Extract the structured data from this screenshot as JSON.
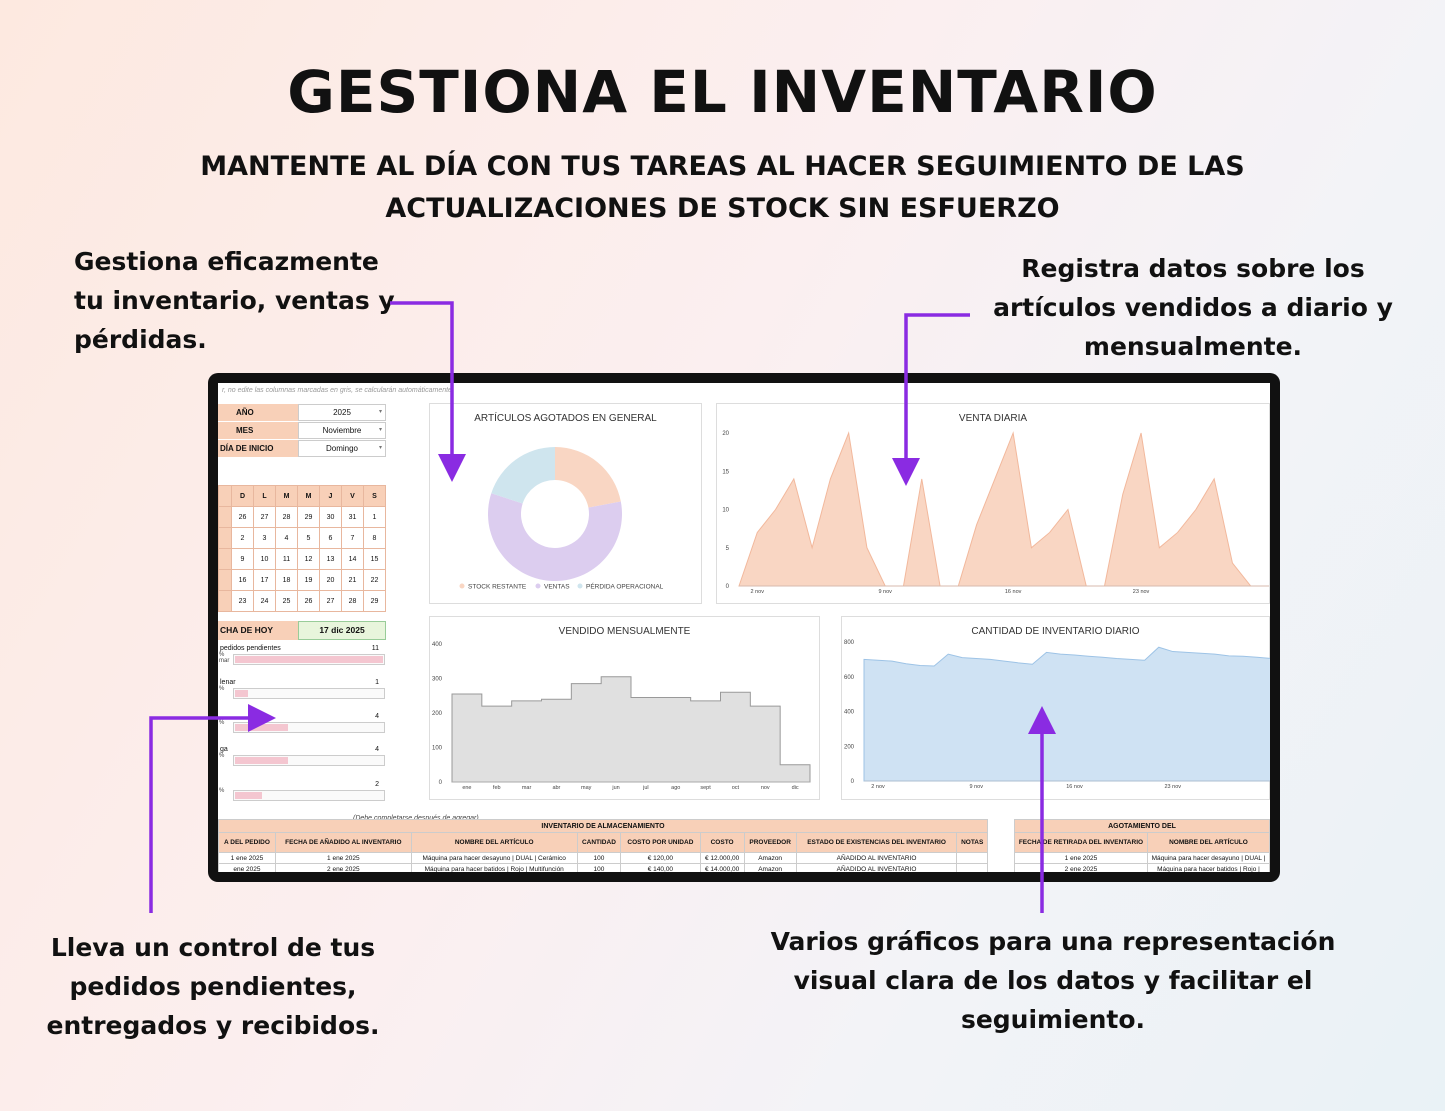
{
  "headline": "GESTIONA EL INVENTARIO",
  "subheadline": {
    "line1": "MANTENTE AL DÍA CON TUS TAREAS AL HACER SEGUIMIENTO DE LAS",
    "line2": "ACTUALIZACIONES DE STOCK SIN ESFUERZO"
  },
  "notes": {
    "top_left": [
      "Gestiona eficazmente",
      "tu inventario, ventas y",
      "pérdidas."
    ],
    "top_right": [
      "Registra datos sobre los",
      "artículos vendidos a diario y",
      "mensualmente."
    ],
    "bottom_left": [
      "Lleva un control de tus",
      "pedidos pendientes,",
      "entregados y recibidos."
    ],
    "bottom_right": [
      "Varios gráficos para una representación",
      "visual clara de los datos y facilitar el",
      "seguimiento."
    ]
  },
  "colors": {
    "arrow": "#8a2be2",
    "header_fill": "#f8d0b8",
    "peach": "#f9d6c3",
    "lavender": "#dccdef",
    "light_blue": "#cfe5ee",
    "gray_area": "#e0e0e0",
    "blue_area": "#cfe2f3",
    "blue_line": "#9dc3e6"
  },
  "sheet": {
    "hint": "r, no edite las columnas marcadas en gris, se calcularán automáticamente.",
    "year_label": "AÑO",
    "year_value": "2025",
    "month_label": "MES",
    "month_value": "Noviembre",
    "start_label": "DÍA DE INICIO",
    "start_value": "Domingo",
    "weekdays": [
      "D",
      "L",
      "M",
      "M",
      "J",
      "V",
      "S"
    ],
    "weeks": [
      [
        "26",
        "27",
        "28",
        "29",
        "30",
        "31",
        "1"
      ],
      [
        "2",
        "3",
        "4",
        "5",
        "6",
        "7",
        "8"
      ],
      [
        "9",
        "10",
        "11",
        "12",
        "13",
        "14",
        "15"
      ],
      [
        "16",
        "17",
        "18",
        "19",
        "20",
        "21",
        "22"
      ],
      [
        "23",
        "24",
        "25",
        "26",
        "27",
        "28",
        "29"
      ]
    ],
    "today_label": "CHA DE HOY",
    "today_value": "17 dic 2025",
    "orders": [
      {
        "label": "pedidos pendientes",
        "count": "11",
        "pct": "%",
        "extra": "mar",
        "fill": 1.0
      },
      {
        "label": "lenar",
        "count": "1",
        "pct": "%",
        "extra": "",
        "fill": 0.09
      },
      {
        "label": "",
        "count": "4",
        "pct": "%",
        "extra": "",
        "fill": 0.36
      },
      {
        "label": "ga",
        "count": "4",
        "pct": "%",
        "extra": "",
        "fill": 0.36
      },
      {
        "label": "",
        "count": "2",
        "pct": "%",
        "extra": "",
        "fill": 0.18
      }
    ],
    "complete_note": "(Debe completarse después de agregar)"
  },
  "chart_data": [
    {
      "type": "pie",
      "title": "ARTÍCULOS AGOTADOS EN GENERAL",
      "donut": true,
      "slices": [
        {
          "name": "STOCK RESTANTE",
          "value": 22
        },
        {
          "name": "VENTAS",
          "value": 58
        },
        {
          "name": "PÉRDIDA OPERACIONAL",
          "value": 20
        }
      ],
      "legend": "bottom"
    },
    {
      "type": "area",
      "title": "VENTA DIARIA",
      "x": [
        "1 nov",
        "2 nov",
        "3 nov",
        "4 nov",
        "5 nov",
        "6 nov",
        "7 nov",
        "8 nov",
        "9 nov",
        "10 nov",
        "11 nov",
        "12 nov",
        "13 nov",
        "14 nov",
        "15 nov",
        "16 nov",
        "17 nov",
        "18 nov",
        "19 nov",
        "20 nov",
        "21 nov",
        "22 nov",
        "23 nov",
        "24 nov",
        "25 nov",
        "26 nov",
        "27 nov",
        "28 nov",
        "29 nov",
        "30 nov"
      ],
      "values": [
        0,
        7,
        10,
        14,
        5,
        14,
        20,
        5,
        0,
        0,
        14,
        0,
        0,
        8,
        14,
        20,
        5,
        7,
        10,
        0,
        0,
        12,
        20,
        5,
        7,
        10,
        14,
        3,
        0,
        0
      ],
      "xticks": [
        "2 nov",
        "9 nov",
        "16 nov",
        "23 nov"
      ],
      "yticks": [
        0,
        5,
        10,
        15,
        20
      ],
      "ylim": [
        0,
        20
      ]
    },
    {
      "type": "area",
      "title": "VENDIDO MENSUALMENTE",
      "step": true,
      "categories": [
        "ene",
        "feb",
        "mar",
        "abr",
        "may",
        "jun",
        "jul",
        "ago",
        "sept",
        "oct",
        "nov",
        "dic"
      ],
      "values": [
        255,
        220,
        235,
        240,
        285,
        305,
        245,
        245,
        235,
        260,
        220,
        50
      ],
      "yticks": [
        0,
        100,
        200,
        300,
        400
      ],
      "ylim": [
        0,
        400
      ]
    },
    {
      "type": "area",
      "title": "CANTIDAD DE INVENTARIO DIARIO",
      "x": [
        "1 nov",
        "2 nov",
        "3 nov",
        "4 nov",
        "5 nov",
        "6 nov",
        "7 nov",
        "8 nov",
        "9 nov",
        "10 nov",
        "11 nov",
        "12 nov",
        "13 nov",
        "14 nov",
        "15 nov",
        "16 nov",
        "17 nov",
        "18 nov",
        "19 nov",
        "20 nov",
        "21 nov",
        "22 nov",
        "23 nov",
        "24 nov",
        "25 nov",
        "26 nov",
        "27 nov",
        "28 nov",
        "29 nov",
        "30 nov"
      ],
      "values": [
        700,
        695,
        690,
        675,
        665,
        662,
        730,
        710,
        705,
        700,
        690,
        680,
        672,
        740,
        730,
        725,
        718,
        712,
        705,
        700,
        695,
        770,
        745,
        740,
        735,
        730,
        720,
        718,
        712,
        705
      ],
      "xticks": [
        "2 nov",
        "9 nov",
        "16 nov",
        "23 nov"
      ],
      "yticks": [
        0,
        200,
        400,
        600,
        800
      ],
      "ylim": [
        0,
        800
      ]
    }
  ],
  "inventory_table": {
    "title": "INVENTARIO DE ALMACENAMIENTO",
    "headers": [
      "A DEL PEDIDO",
      "FECHA DE AÑADIDO AL INVENTARIO",
      "NOMBRE DEL ARTÍCULO",
      "CANTIDAD",
      "COSTO POR UNIDAD",
      "COSTO",
      "PROVEEDOR",
      "ESTADO DE EXISTENCIAS DEL INVENTARIO",
      "NOTAS"
    ],
    "rows": [
      [
        "1 ene 2025",
        "1 ene 2025",
        "Máquina para hacer desayuno | DUAL | Cerámico",
        "100",
        "€ 120,00",
        "€ 12.000,00",
        "Amazon",
        "AÑADIDO AL INVENTARIO",
        ""
      ],
      [
        "ene 2025",
        "2 ene 2025",
        "Máquina para hacer batidos | Rojo | Multifunción",
        "100",
        "€ 140,00",
        "€ 14.000,00",
        "Amazon",
        "AÑADIDO AL INVENTARIO",
        ""
      ]
    ]
  },
  "depletion_table": {
    "title": "AGOTAMIENTO DEL",
    "headers": [
      "FECHA DE RETIRADA DEL INVENTARIO",
      "NOMBRE DEL ARTÍCULO"
    ],
    "rows": [
      [
        "1 ene 2025",
        "Máquina para hacer desayuno | DUAL |"
      ],
      [
        "2 ene 2025",
        "Máquina para hacer batidos | Rojo |"
      ]
    ]
  }
}
